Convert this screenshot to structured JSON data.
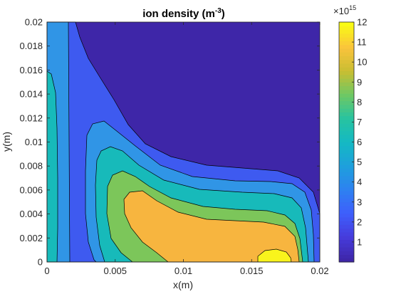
{
  "chart_data": {
    "type": "contourf",
    "title": "ion density (m",
    "title_exponent": "-3",
    "title_suffix": ")",
    "xlabel": "x(m)",
    "ylabel": "y(m)",
    "xlim": [
      0,
      0.02
    ],
    "ylim": [
      0,
      0.02
    ],
    "xticks": [
      "0",
      "0.005",
      "0.01",
      "0.015",
      "0.02"
    ],
    "yticks": [
      "0",
      "0.002",
      "0.004",
      "0.006",
      "0.008",
      "0.01",
      "0.012",
      "0.014",
      "0.016",
      "0.018",
      "0.02"
    ],
    "colorbar": {
      "limits": [
        0,
        12
      ],
      "ticks": [
        "1",
        "2",
        "3",
        "4",
        "5",
        "6",
        "7",
        "8",
        "9",
        "10",
        "11",
        "12"
      ],
      "multiplier_base": "×10",
      "multiplier_exponent": "15",
      "colormap": "parula"
    },
    "contour_levels": [
      {
        "min": 0,
        "max": 1.5,
        "color": "#3E26A8"
      },
      {
        "min": 1.5,
        "max": 3,
        "color": "#3E5AF0"
      },
      {
        "min": 3,
        "max": 4.5,
        "color": "#3095E6"
      },
      {
        "min": 4.5,
        "max": 6,
        "color": "#17BABA"
      },
      {
        "min": 6,
        "max": 7.5,
        "color": "#1BC0A6"
      },
      {
        "min": 7.5,
        "max": 9,
        "color": "#7CC65A"
      },
      {
        "min": 9,
        "max": 10.5,
        "color": "#F7B53F"
      },
      {
        "min": 10.5,
        "max": 12,
        "color": "#F9F41C"
      }
    ]
  }
}
